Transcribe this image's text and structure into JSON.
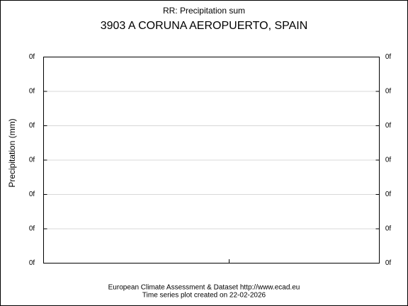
{
  "chart_data": {
    "type": "line",
    "title": "RR: Precipitation sum",
    "subtitle": "3903 A CORUNA AEROPUERTO, SPAIN",
    "y_label": "Precipitation (mm)",
    "footer": [
      "European Climate Assessment & Dataset  http://www.ecad.eu",
      "Time series plot created on 22-02-2026"
    ],
    "series": [],
    "ylim": [
      0,
      6
    ],
    "yticks": [
      {
        "value": 0,
        "label": "0f"
      },
      {
        "value": 1,
        "label": "0f"
      },
      {
        "value": 2,
        "label": "0f"
      },
      {
        "value": 3,
        "label": "0f"
      },
      {
        "value": 4,
        "label": "0f"
      },
      {
        "value": 5,
        "label": "0f"
      },
      {
        "value": 6,
        "label": "0f"
      }
    ],
    "y2lim": [
      0,
      6
    ],
    "y2ticks": [
      {
        "value": 0,
        "label": "0f"
      },
      {
        "value": 1,
        "label": "0f"
      },
      {
        "value": 2,
        "label": "0f"
      },
      {
        "value": 3,
        "label": "0f"
      },
      {
        "value": 4,
        "label": "0f"
      },
      {
        "value": 5,
        "label": "0f"
      },
      {
        "value": 6,
        "label": "0f"
      }
    ],
    "grid": true
  }
}
